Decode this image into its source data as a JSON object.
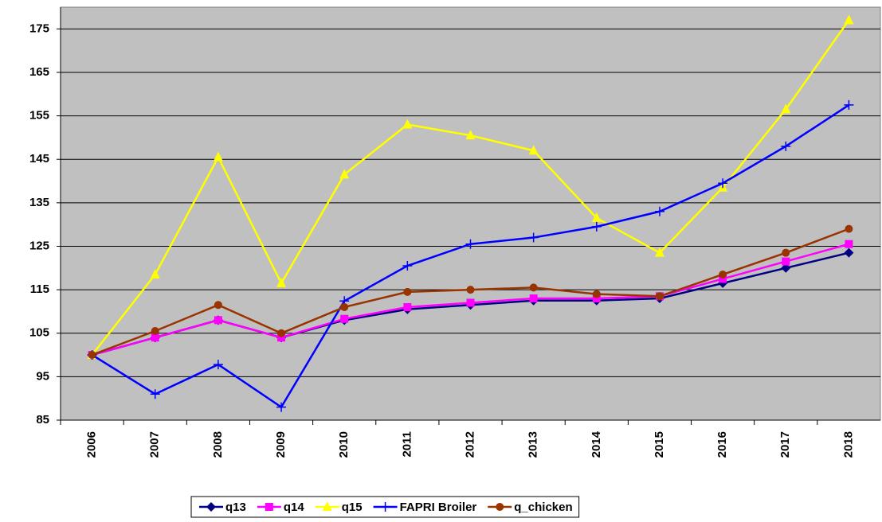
{
  "chart_data": {
    "type": "line",
    "categories": [
      "2006",
      "2007",
      "2008",
      "2009",
      "2010",
      "2011",
      "2012",
      "2013",
      "2014",
      "2015",
      "2016",
      "2017",
      "2018"
    ],
    "series": [
      {
        "name": "q13",
        "color": "#000080",
        "marker": "diamond",
        "values": [
          100,
          104,
          108,
          104,
          108,
          110.5,
          111.5,
          112.5,
          112.5,
          113,
          116.5,
          120,
          123.5
        ]
      },
      {
        "name": "q14",
        "color": "#ff00ff",
        "marker": "square",
        "values": [
          100,
          104,
          108,
          104,
          108.3,
          111,
          112,
          113,
          113,
          113.5,
          117.5,
          121.5,
          125.5
        ]
      },
      {
        "name": "q15",
        "color": "#ffff00",
        "marker": "triangle",
        "values": [
          100,
          118.5,
          145.5,
          116.5,
          141.5,
          153,
          150.5,
          147,
          131.5,
          123.5,
          138.5,
          156.5,
          177
        ]
      },
      {
        "name": "FAPRI Broiler",
        "color": "#0000ff",
        "marker": "plus",
        "values": [
          100,
          91,
          97.8,
          88,
          112.4,
          120.5,
          125.5,
          127,
          129.5,
          133,
          139.5,
          148,
          157.5
        ]
      },
      {
        "name": "q_chicken",
        "color": "#993300",
        "marker": "circle",
        "values": [
          100,
          105.5,
          111.5,
          105,
          111,
          114.5,
          115,
          115.5,
          114,
          113.5,
          118.5,
          123.5,
          129
        ]
      }
    ],
    "ylim": [
      85,
      180
    ],
    "yticks": [
      85,
      95,
      105,
      115,
      125,
      135,
      145,
      155,
      165,
      175
    ],
    "grid": true,
    "legend": "bottom"
  }
}
